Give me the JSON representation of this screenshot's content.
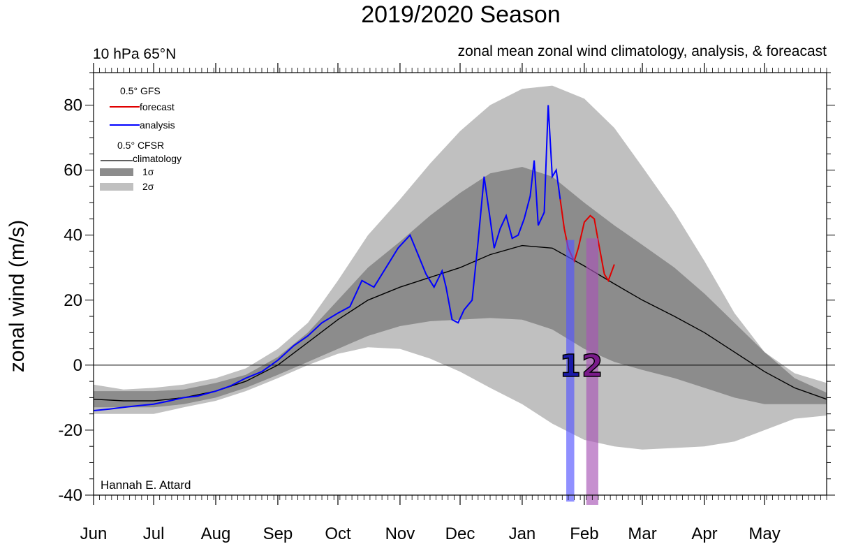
{
  "chart_data": {
    "type": "line",
    "title": "2019/2020 Season",
    "level_label": "10 hPa 65°N",
    "subtitle": "zonal mean zonal wind climatology, analysis, & foreacast",
    "ylabel": "zonal wind (m/s)",
    "ylim": [
      -40,
      90
    ],
    "xlim": [
      0,
      366
    ],
    "y_ticks": [
      80,
      60,
      40,
      20,
      0,
      -20,
      -40
    ],
    "x_ticks": [
      {
        "label": "Jun",
        "day": 0
      },
      {
        "label": "Jul",
        "day": 30
      },
      {
        "label": "Aug",
        "day": 61
      },
      {
        "label": "Sep",
        "day": 92
      },
      {
        "label": "Oct",
        "day": 122
      },
      {
        "label": "Nov",
        "day": 153
      },
      {
        "label": "Dec",
        "day": 183
      },
      {
        "label": "Jan",
        "day": 214
      },
      {
        "label": "Feb",
        "day": 245
      },
      {
        "label": "Mar",
        "day": 274
      },
      {
        "label": "Apr",
        "day": 305
      },
      {
        "label": "May",
        "day": 335
      }
    ],
    "zero_line": 0,
    "climatology": {
      "day": [
        0,
        15,
        30,
        45,
        61,
        76,
        92,
        107,
        122,
        137,
        153,
        168,
        183,
        198,
        214,
        229,
        245,
        260,
        274,
        290,
        305,
        320,
        335,
        350,
        366
      ],
      "mean": [
        -10.5,
        -11,
        -11,
        -10,
        -8,
        -5,
        0,
        7,
        14,
        20,
        24,
        27,
        30,
        34,
        36.8,
        36,
        30.5,
        25,
        20,
        15,
        10,
        4,
        -2,
        -7,
        -10.5
      ],
      "sig1_lo": [
        -13,
        -13,
        -13,
        -12,
        -10,
        -7,
        -3,
        1,
        5,
        9,
        12,
        13.5,
        14,
        14.5,
        14,
        11,
        5,
        1,
        -1.5,
        -4,
        -7,
        -10,
        -12,
        -12,
        -12
      ],
      "sig1_hi": [
        -8,
        -8,
        -8,
        -7.5,
        -5.5,
        -3,
        2.5,
        10,
        20,
        30,
        38,
        46,
        53,
        59,
        61,
        58,
        50,
        43,
        37,
        30,
        22,
        13,
        4,
        -4,
        -8.5
      ],
      "sig2_lo": [
        -15,
        -15,
        -15,
        -13,
        -11,
        -8,
        -4,
        0,
        3.5,
        5.5,
        5,
        2,
        -2,
        -7,
        -12,
        -18,
        -23,
        -25,
        -26,
        -25.5,
        -25,
        -23.5,
        -20,
        -16.5,
        -15.5
      ],
      "sig2_hi": [
        -6,
        -7.5,
        -7,
        -6,
        -4,
        -1,
        5,
        13,
        26,
        40,
        51,
        62,
        72,
        80,
        85,
        86,
        82,
        73,
        61,
        47,
        32,
        16,
        4,
        -2.5,
        -5.5
      ]
    },
    "series": [
      {
        "name": "analysis",
        "color": "#0000ff",
        "day": [
          0,
          8,
          15,
          22,
          30,
          38,
          45,
          52,
          61,
          68,
          76,
          84,
          92,
          100,
          107,
          114,
          122,
          128,
          134,
          140,
          146,
          152,
          158,
          162,
          166,
          170,
          174,
          176,
          179,
          182,
          185,
          189,
          192,
          195,
          198,
          200,
          203,
          206,
          209,
          212,
          215,
          218,
          220,
          222,
          225,
          227,
          229,
          231,
          233
        ],
        "value": [
          -14,
          -13.5,
          -13,
          -12.5,
          -12,
          -11,
          -10,
          -9.5,
          -8,
          -6.5,
          -4,
          -2,
          1.5,
          6,
          9,
          13,
          16,
          18,
          26,
          24,
          30,
          36,
          40,
          34,
          28,
          24,
          29,
          24,
          14,
          13,
          17,
          20,
          38,
          58,
          45,
          36,
          42,
          46,
          39,
          40,
          45,
          52,
          63,
          43,
          47,
          80,
          58,
          60,
          51
        ]
      },
      {
        "name": "forecast",
        "color": "#e00000",
        "day": [
          233,
          235,
          237,
          240,
          242,
          245,
          248,
          250,
          252,
          255,
          257,
          260
        ],
        "value": [
          51,
          42,
          36,
          32,
          36,
          44,
          46,
          45,
          38,
          28,
          26,
          31
        ]
      }
    ],
    "events": [
      {
        "label": "1",
        "color": "#1a1aa8",
        "bar_color": "#5555ff",
        "day_start": 236,
        "day_end": 240,
        "y_top": 38.5,
        "y_bottom": -42
      },
      {
        "label": "2",
        "color": "#7a1a8a",
        "bar_color": "#a855b5",
        "day_start": 246,
        "day_end": 252,
        "y_top": 39,
        "y_bottom": -43
      }
    ],
    "legend": {
      "position": "top-left",
      "gfs_header": "0.5° GFS",
      "forecast": "forecast",
      "analysis": "analysis",
      "cfsr_header": "0.5° CFSR",
      "climatology": "climatology",
      "sigma1": "1σ",
      "sigma2": "2σ",
      "sigma1_color": "#8c8c8c",
      "sigma2_color": "#c0c0c0"
    },
    "credit": "Hannah E. Attard"
  }
}
